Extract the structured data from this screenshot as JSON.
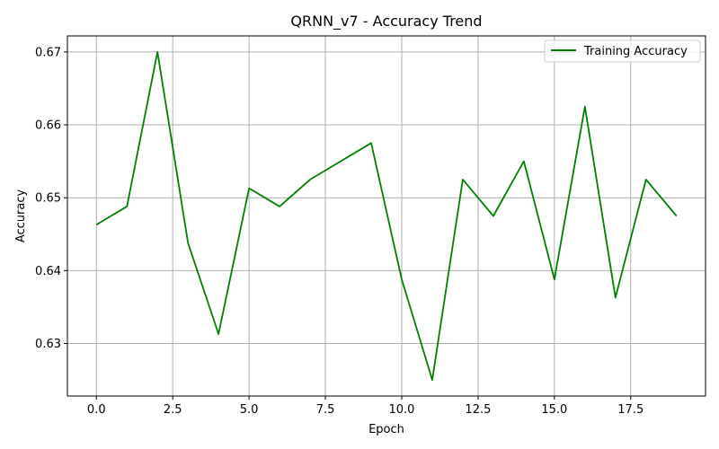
{
  "chart_data": {
    "type": "line",
    "title": "QRNN_v7 - Accuracy Trend",
    "xlabel": "Epoch",
    "ylabel": "Accuracy",
    "xlim": [
      -0.95,
      19.95
    ],
    "ylim": [
      0.6228,
      0.6722
    ],
    "xticks": [
      0.0,
      2.5,
      5.0,
      7.5,
      10.0,
      12.5,
      15.0,
      17.5
    ],
    "xtick_labels": [
      "0.0",
      "2.5",
      "5.0",
      "7.5",
      "10.0",
      "12.5",
      "15.0",
      "17.5"
    ],
    "yticks": [
      0.63,
      0.64,
      0.65,
      0.66,
      0.67
    ],
    "ytick_labels": [
      "0.63",
      "0.64",
      "0.65",
      "0.66",
      "0.67"
    ],
    "grid": true,
    "legend_position": "top-right",
    "x": [
      0,
      1,
      2,
      3,
      4,
      5,
      6,
      7,
      8,
      9,
      10,
      11,
      12,
      13,
      14,
      15,
      16,
      17,
      18,
      19
    ],
    "series": [
      {
        "name": "Training Accuracy",
        "color": "#008000",
        "values": [
          0.6463,
          0.6488,
          0.67,
          0.6438,
          0.6313,
          0.6513,
          0.6488,
          0.6525,
          0.655,
          0.6575,
          0.6388,
          0.625,
          0.6525,
          0.6475,
          0.655,
          0.6388,
          0.6625,
          0.6363,
          0.6525,
          0.6475
        ]
      }
    ]
  }
}
